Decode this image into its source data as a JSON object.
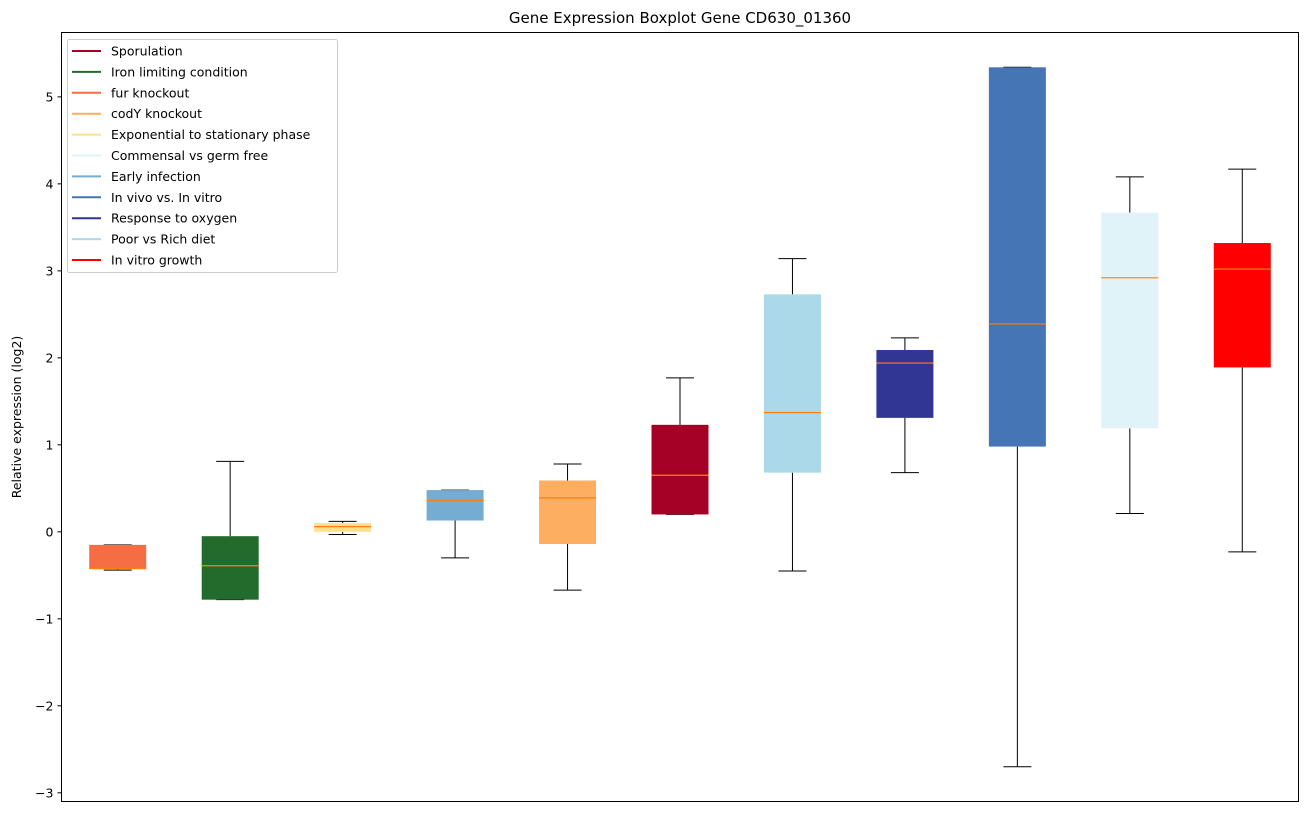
{
  "chart_data": {
    "type": "boxplot",
    "title": "Gene Expression Boxplot Gene CD630_01360",
    "xlabel": "",
    "ylabel": "Relative expression (log2)",
    "ylim": [
      -3.1,
      5.74
    ],
    "yticks": [
      -3,
      -2,
      -1,
      0,
      1,
      2,
      3,
      4,
      5
    ],
    "ytick_labels": [
      "−3",
      "−2",
      "−1",
      "0",
      "1",
      "2",
      "3",
      "4",
      "5"
    ],
    "grid": false,
    "legend_position": "top-left",
    "median_color": "#ff7f0e",
    "legend": [
      {
        "label": "Sporulation",
        "color": "#a50026"
      },
      {
        "label": "Iron limiting condition",
        "color": "#236b2d"
      },
      {
        "label": "fur knockout",
        "color": "#f46d43"
      },
      {
        "label": "codY knockout",
        "color": "#fdae61"
      },
      {
        "label": "Exponential to stationary phase",
        "color": "#fee090"
      },
      {
        "label": "Commensal vs germ free",
        "color": "#e0f3f8"
      },
      {
        "label": "Early infection",
        "color": "#74add1"
      },
      {
        "label": "In vivo vs. In vitro",
        "color": "#4575b4"
      },
      {
        "label": "Response to oxygen",
        "color": "#313695"
      },
      {
        "label": "Poor vs Rich diet",
        "color": "#abd9e9"
      },
      {
        "label": "In vitro growth",
        "color": "#ff0000"
      }
    ],
    "boxes": [
      {
        "group": "fur knockout",
        "color": "#f46d43",
        "whislo": -0.44,
        "q1": -0.43,
        "median": -0.42,
        "q3": -0.15,
        "whishi": -0.15
      },
      {
        "group": "Iron limiting condition",
        "color": "#236b2d",
        "whislo": -0.78,
        "q1": -0.78,
        "median": -0.39,
        "q3": -0.05,
        "whishi": 0.81
      },
      {
        "group": "Exponential to stationary phase",
        "color": "#fee090",
        "whislo": -0.03,
        "q1": 0.0,
        "median": 0.06,
        "q3": 0.1,
        "whishi": 0.12
      },
      {
        "group": "Early infection",
        "color": "#74add1",
        "whislo": -0.3,
        "q1": 0.13,
        "median": 0.36,
        "q3": 0.48,
        "whishi": 0.48
      },
      {
        "group": "codY knockout",
        "color": "#fdae61",
        "whislo": -0.67,
        "q1": -0.14,
        "median": 0.39,
        "q3": 0.59,
        "whishi": 0.78
      },
      {
        "group": "Sporulation",
        "color": "#a50026",
        "whislo": 0.2,
        "q1": 0.2,
        "median": 0.65,
        "q3": 1.23,
        "whishi": 1.77
      },
      {
        "group": "Poor vs Rich diet",
        "color": "#abd9e9",
        "whislo": -0.45,
        "q1": 0.68,
        "median": 1.37,
        "q3": 2.73,
        "whishi": 3.14
      },
      {
        "group": "Response to oxygen",
        "color": "#313695",
        "whislo": 0.68,
        "q1": 1.31,
        "median": 1.94,
        "q3": 2.09,
        "whishi": 2.23
      },
      {
        "group": "In vivo vs. In vitro",
        "color": "#4575b4",
        "whislo": -2.7,
        "q1": 0.98,
        "median": 2.39,
        "q3": 5.34,
        "whishi": 5.34
      },
      {
        "group": "Commensal vs germ free",
        "color": "#e0f3f8",
        "whislo": 0.21,
        "q1": 1.19,
        "median": 2.92,
        "q3": 3.67,
        "whishi": 4.08
      },
      {
        "group": "In vitro growth",
        "color": "#ff0000",
        "whislo": -0.23,
        "q1": 1.89,
        "median": 3.02,
        "q3": 3.32,
        "whishi": 4.17
      }
    ]
  }
}
